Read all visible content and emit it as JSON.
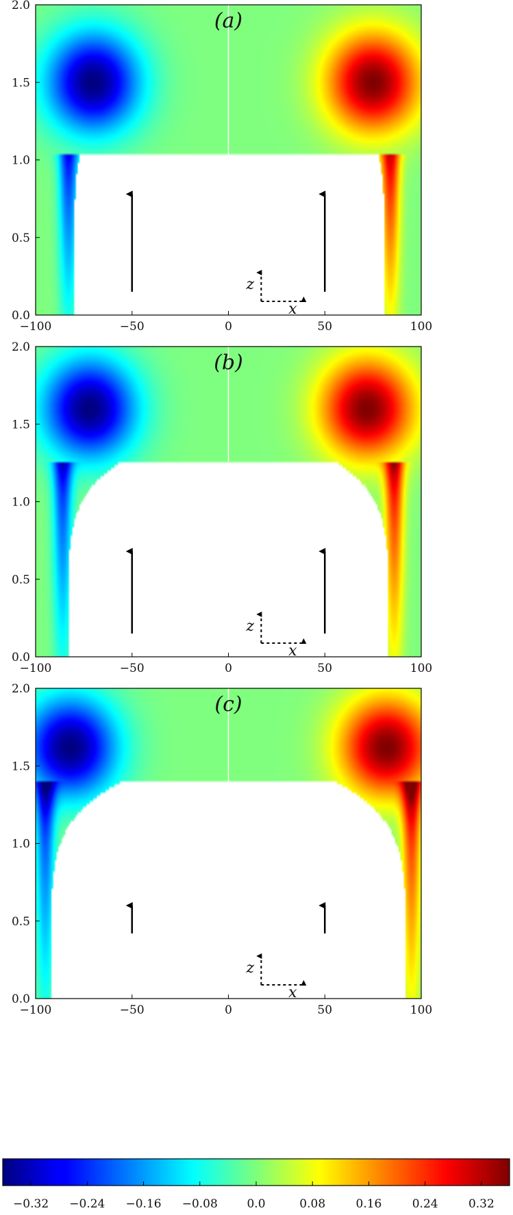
{
  "chart_data": [
    {
      "type": "heatmap",
      "panel_label": "(a)",
      "xlim": [
        -100,
        100
      ],
      "ylim": [
        0.0,
        2.0
      ],
      "x_ticks": [
        "−100",
        "−50",
        "0",
        "50",
        "100"
      ],
      "y_ticks": [
        "0.0",
        "0.5",
        "1.0",
        "1.5",
        "2.0"
      ],
      "white_region": {
        "top_z": 1.03,
        "left_edge_x_at_z0": -80,
        "right_edge_x_at_z0": 81,
        "left_edge_x_at_top": -77,
        "right_edge_x_at_top": 78
      },
      "field_extrema": {
        "min": {
          "x": -70,
          "z": 1.5,
          "value": -0.36
        },
        "max": {
          "x": 75,
          "z": 1.5,
          "value": 0.36
        }
      },
      "arrows": [
        {
          "x": -50,
          "z_from": 0.15,
          "z_to": 0.78
        },
        {
          "x": 50,
          "z_from": 0.15,
          "z_to": 0.78
        }
      ],
      "axes_indicator": {
        "x_label": "x",
        "z_label": "z"
      }
    },
    {
      "type": "heatmap",
      "panel_label": "(b)",
      "xlim": [
        -100,
        100
      ],
      "ylim": [
        0.0,
        2.0
      ],
      "x_ticks": [
        "−100",
        "−50",
        "0",
        "50",
        "100"
      ],
      "y_ticks": [
        "0.0",
        "0.5",
        "1.0",
        "1.5",
        "2.0"
      ],
      "white_region": {
        "top_z": 1.26,
        "left_edge_x_at_z0": -83,
        "right_edge_x_at_z0": 83,
        "left_edge_x_at_top": -55,
        "right_edge_x_at_top": 55
      },
      "field_extrema": {
        "min": {
          "x": -72,
          "z": 1.6,
          "value": -0.36
        },
        "max": {
          "x": 72,
          "z": 1.6,
          "value": 0.36
        }
      },
      "arrows": [
        {
          "x": -50,
          "z_from": 0.15,
          "z_to": 0.68
        },
        {
          "x": 50,
          "z_from": 0.15,
          "z_to": 0.68
        }
      ],
      "axes_indicator": {
        "x_label": "x",
        "z_label": "z"
      }
    },
    {
      "type": "heatmap",
      "panel_label": "(c)",
      "xlim": [
        -100,
        100
      ],
      "ylim": [
        0.0,
        2.0
      ],
      "x_ticks": [
        "−100",
        "−50",
        "0",
        "50",
        "100"
      ],
      "y_ticks": [
        "0.0",
        "0.5",
        "1.0",
        "1.5",
        "2.0"
      ],
      "white_region": {
        "top_z": 1.4,
        "left_edge_x_at_z0": -92,
        "right_edge_x_at_z0": 92,
        "left_edge_x_at_top": -55,
        "right_edge_x_at_top": 55
      },
      "field_extrema": {
        "min": {
          "x": -82,
          "z": 1.62,
          "value": -0.36
        },
        "max": {
          "x": 82,
          "z": 1.62,
          "value": 0.36
        }
      },
      "arrows": [
        {
          "x": -50,
          "z_from": 0.42,
          "z_to": 0.6
        },
        {
          "x": 50,
          "z_from": 0.42,
          "z_to": 0.6
        }
      ],
      "axes_indicator": {
        "x_label": "x",
        "z_label": "z"
      }
    }
  ],
  "colorbar": {
    "colormap": "jet",
    "range": [
      -0.36,
      0.36
    ],
    "tick_values": [
      -0.32,
      -0.24,
      -0.16,
      -0.08,
      0.0,
      0.08,
      0.16,
      0.24,
      0.32
    ],
    "tick_labels": [
      "−0.32",
      "−0.24",
      "−0.16",
      "−0.08",
      "0.0",
      "0.08",
      "0.16",
      "0.24",
      "0.32"
    ]
  },
  "colors": {
    "background": "#ffffff",
    "axis": "#000000",
    "centerline": "#ffffff"
  }
}
